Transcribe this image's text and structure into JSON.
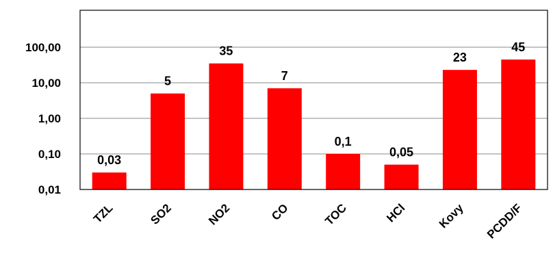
{
  "chart_data": {
    "type": "bar",
    "yscale": "log",
    "ylim": [
      0.01,
      100
    ],
    "grid": true,
    "bar_color": "#ff0000",
    "categories": [
      "TZL",
      "SO2",
      "NO2",
      "CO",
      "TOC",
      "HCl",
      "Kovy",
      "PCDD/F"
    ],
    "values": [
      0.03,
      5,
      35,
      7,
      0.1,
      0.05,
      23,
      45
    ],
    "data_labels": [
      "0,03",
      "5",
      "35",
      "7",
      "0,1",
      "0,05",
      "23",
      "45"
    ],
    "yticks": [
      {
        "value": 0.01,
        "label": "0,01"
      },
      {
        "value": 0.1,
        "label": "0,10"
      },
      {
        "value": 1,
        "label": "1,00"
      },
      {
        "value": 10,
        "label": "10,00"
      },
      {
        "value": 100,
        "label": "100,00"
      }
    ]
  }
}
